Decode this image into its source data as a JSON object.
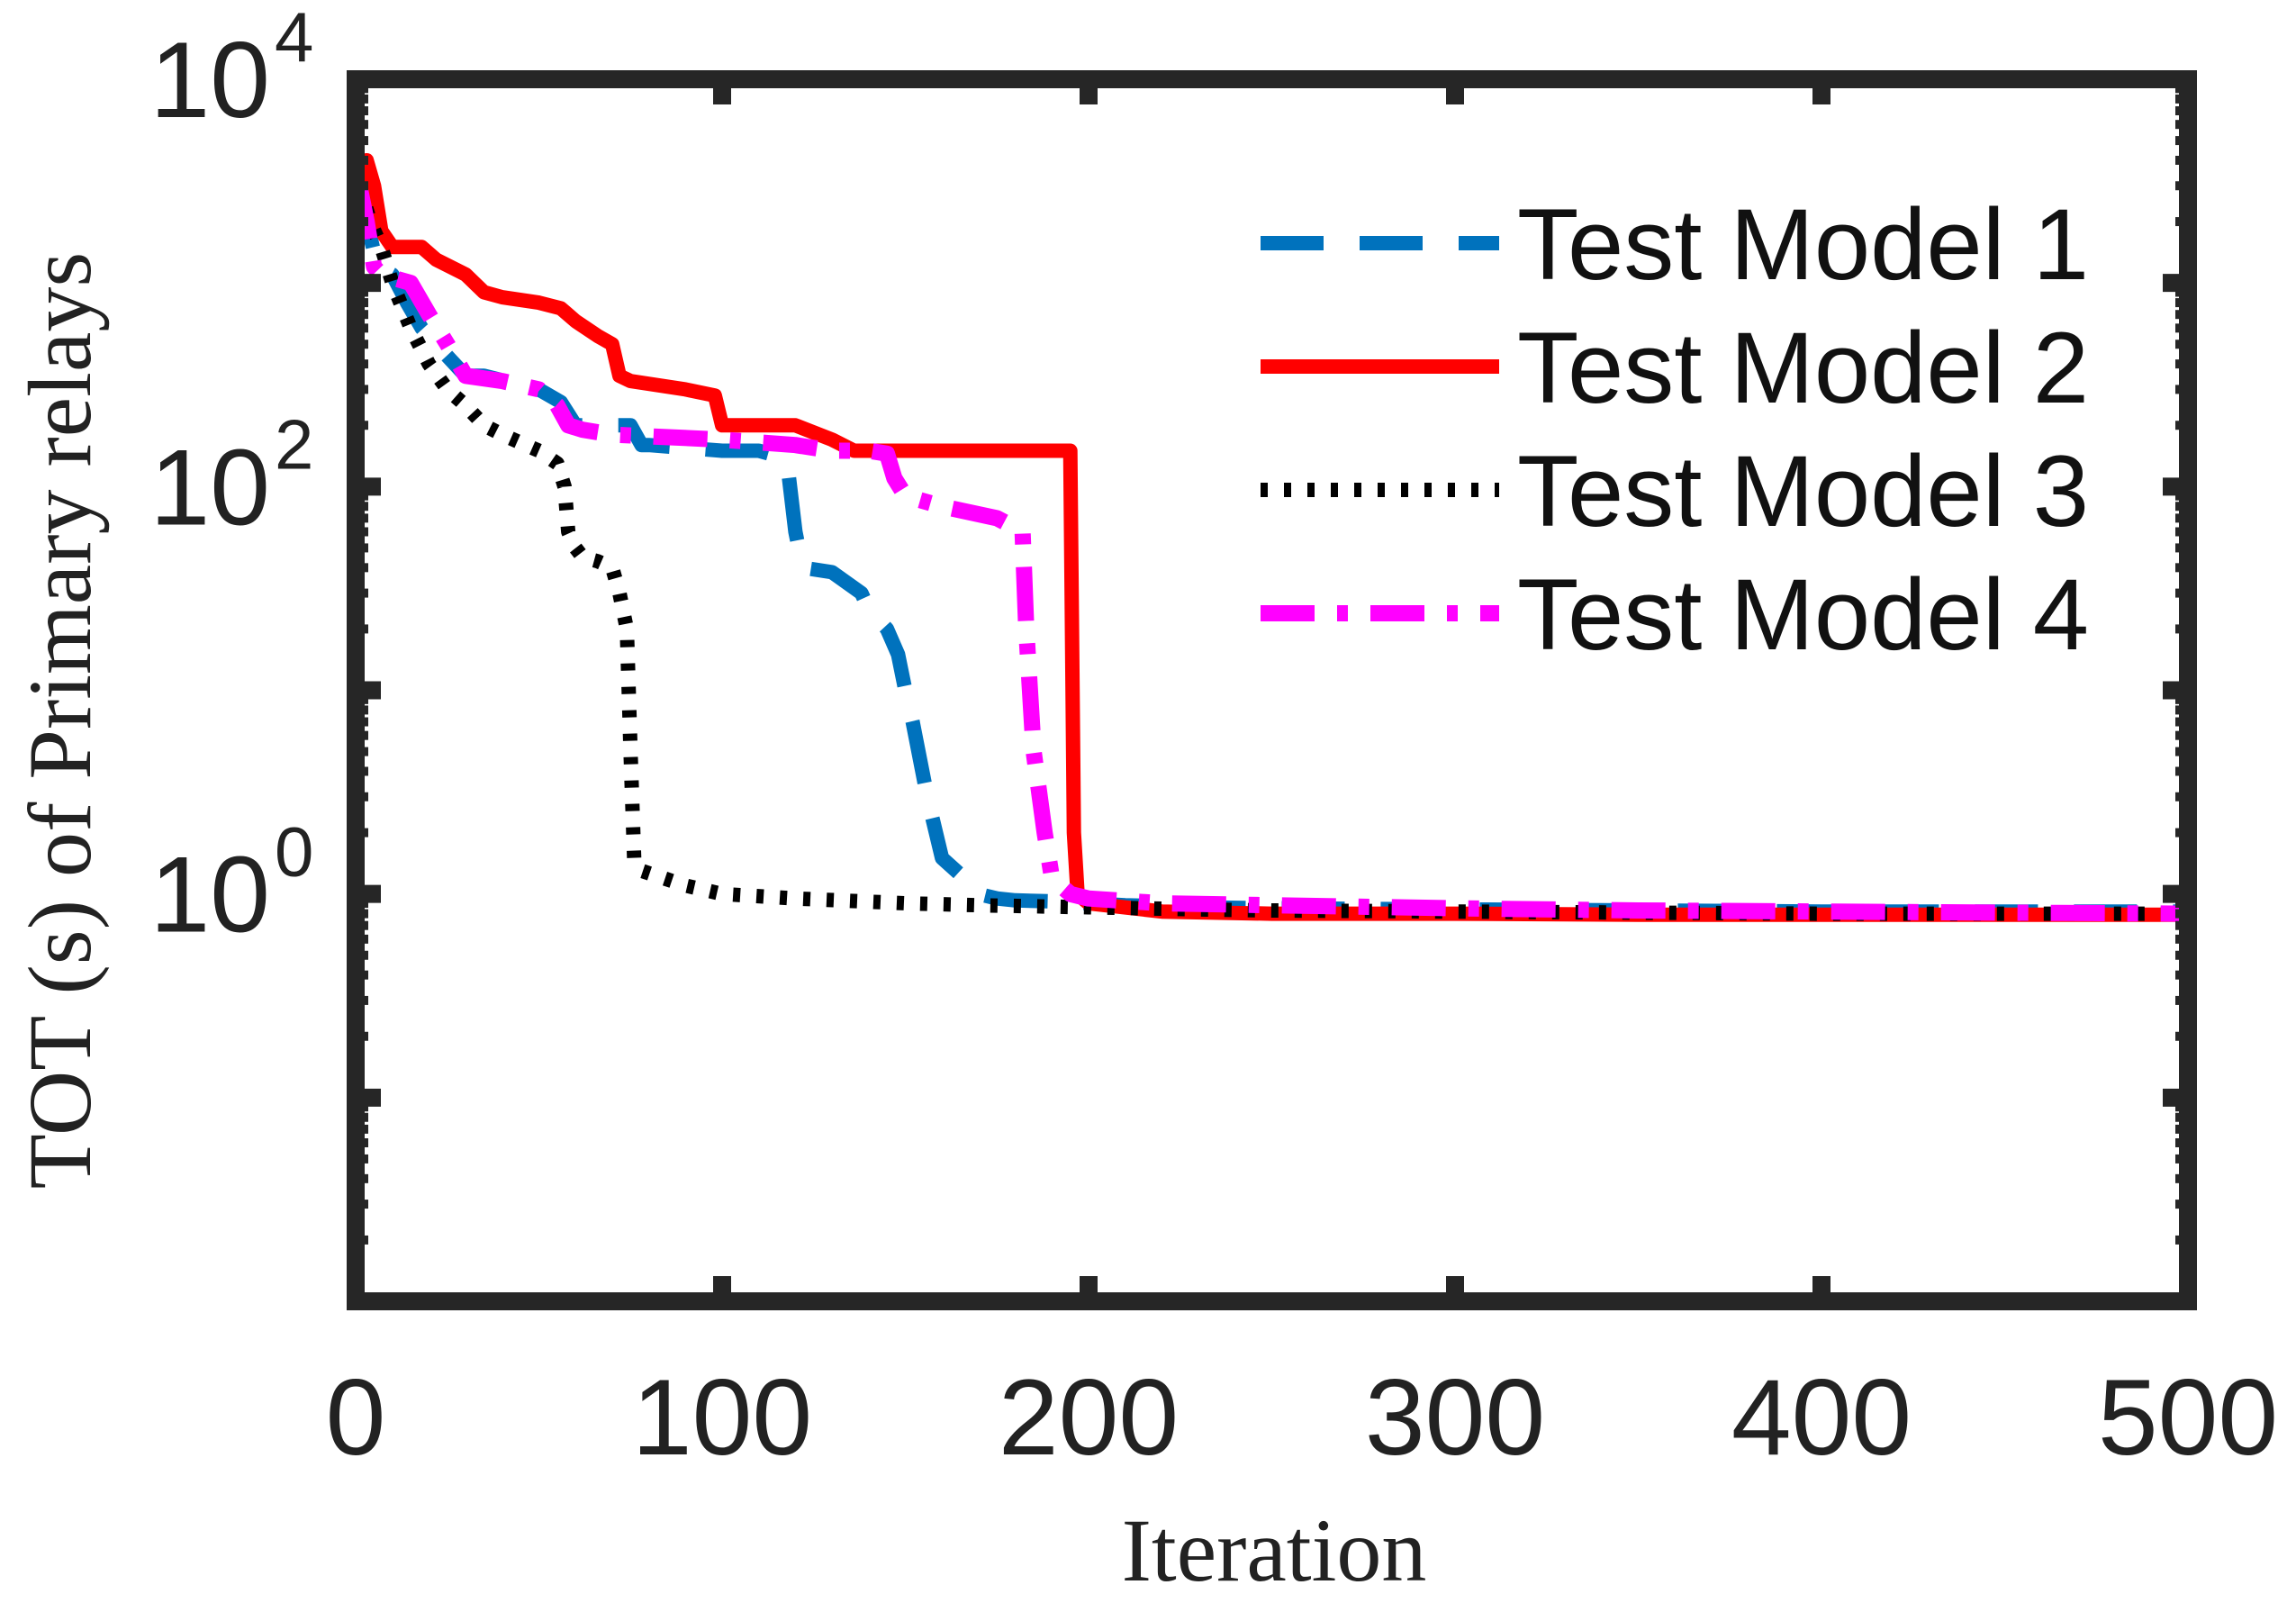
{
  "chart_data": {
    "type": "line",
    "title": "",
    "xlabel": "Iteration",
    "ylabel": "TOT (s) of Primary relays",
    "xlim": [
      0,
      500
    ],
    "ylim": [
      0.01,
      10000
    ],
    "yscale": "log",
    "x_ticks": [
      0,
      100,
      200,
      300,
      400,
      500
    ],
    "x_tick_labels": [
      "0",
      "100",
      "200",
      "300",
      "400",
      "500"
    ],
    "y_ticks": [
      {
        "value": 10000,
        "base": "10",
        "exp": "4"
      },
      {
        "value": 100,
        "base": "10",
        "exp": "2"
      },
      {
        "value": 1,
        "base": "10",
        "exp": "0"
      }
    ],
    "legend_position": "top-right",
    "series": [
      {
        "name": "Test Model 1",
        "color": "#0072BD",
        "style": "dashed",
        "x": [
          1,
          3,
          6,
          10,
          14,
          18,
          22,
          30,
          35,
          50,
          56,
          60,
          75,
          78,
          80,
          100,
          110,
          116,
          118,
          120,
          122,
          130,
          138,
          140,
          145,
          148,
          150,
          152,
          156,
          160,
          166,
          170,
          175,
          180,
          190,
          200,
          210,
          230,
          250,
          300,
          350,
          400,
          450,
          500
        ],
        "y": [
          3000,
          2000,
          1200,
          1100,
          800,
          600,
          500,
          350,
          350,
          300,
          260,
          200,
          200,
          160,
          160,
          150,
          150,
          140,
          120,
          60,
          40,
          38,
          30,
          25,
          20,
          15,
          10,
          7,
          3,
          1.5,
          1.2,
          1.0,
          0.95,
          0.93,
          0.92,
          0.9,
          0.88,
          0.86,
          0.85,
          0.84,
          0.83,
          0.82,
          0.82,
          0.82
        ]
      },
      {
        "name": "Test Model 2",
        "color": "#FF0000",
        "style": "solid",
        "x": [
          1,
          3,
          5,
          7,
          10,
          18,
          22,
          30,
          35,
          40,
          50,
          56,
          60,
          66,
          70,
          72,
          75,
          90,
          98,
          100,
          120,
          130,
          136,
          190,
          195,
          196,
          197,
          200,
          220,
          250,
          300,
          350,
          400,
          450,
          500
        ],
        "y": [
          3000,
          4000,
          3000,
          1800,
          1500,
          1500,
          1300,
          1100,
          900,
          850,
          800,
          750,
          650,
          550,
          500,
          350,
          330,
          300,
          280,
          200,
          200,
          170,
          150,
          150,
          150,
          2,
          1.0,
          0.9,
          0.82,
          0.8,
          0.8,
          0.79,
          0.79,
          0.79,
          0.79
        ]
      },
      {
        "name": "Test Model 3",
        "color": "#000000",
        "style": "dotted",
        "x": [
          1,
          4,
          7,
          10,
          15,
          20,
          25,
          30,
          35,
          40,
          50,
          55,
          57,
          58,
          60,
          62,
          66,
          70,
          72,
          74,
          75,
          76,
          78,
          90,
          100,
          120,
          150,
          170,
          200,
          230,
          250,
          300,
          350,
          400,
          450,
          500
        ],
        "y": [
          3000,
          2000,
          1500,
          1000,
          600,
          400,
          300,
          250,
          200,
          180,
          150,
          130,
          100,
          60,
          50,
          45,
          43,
          40,
          30,
          20,
          5,
          1.5,
          1.3,
          1.1,
          1.0,
          0.95,
          0.9,
          0.88,
          0.86,
          0.84,
          0.83,
          0.82,
          0.81,
          0.8,
          0.8,
          0.8
        ]
      },
      {
        "name": "Test Model 4",
        "color": "#FF00FF",
        "style": "dashdot",
        "x": [
          1,
          3,
          5,
          7,
          15,
          20,
          25,
          30,
          40,
          50,
          55,
          58,
          62,
          70,
          100,
          120,
          130,
          140,
          145,
          147,
          150,
          160,
          175,
          182,
          183,
          185,
          188,
          190,
          195,
          200,
          220,
          250,
          300,
          350,
          400,
          450,
          500
        ],
        "y": [
          3000,
          2000,
          1200,
          1100,
          1000,
          700,
          500,
          350,
          330,
          300,
          250,
          200,
          190,
          180,
          170,
          160,
          150,
          150,
          145,
          110,
          90,
          80,
          70,
          60,
          20,
          5,
          2,
          1.2,
          1.0,
          0.95,
          0.9,
          0.88,
          0.85,
          0.83,
          0.82,
          0.81,
          0.8
        ]
      }
    ]
  }
}
